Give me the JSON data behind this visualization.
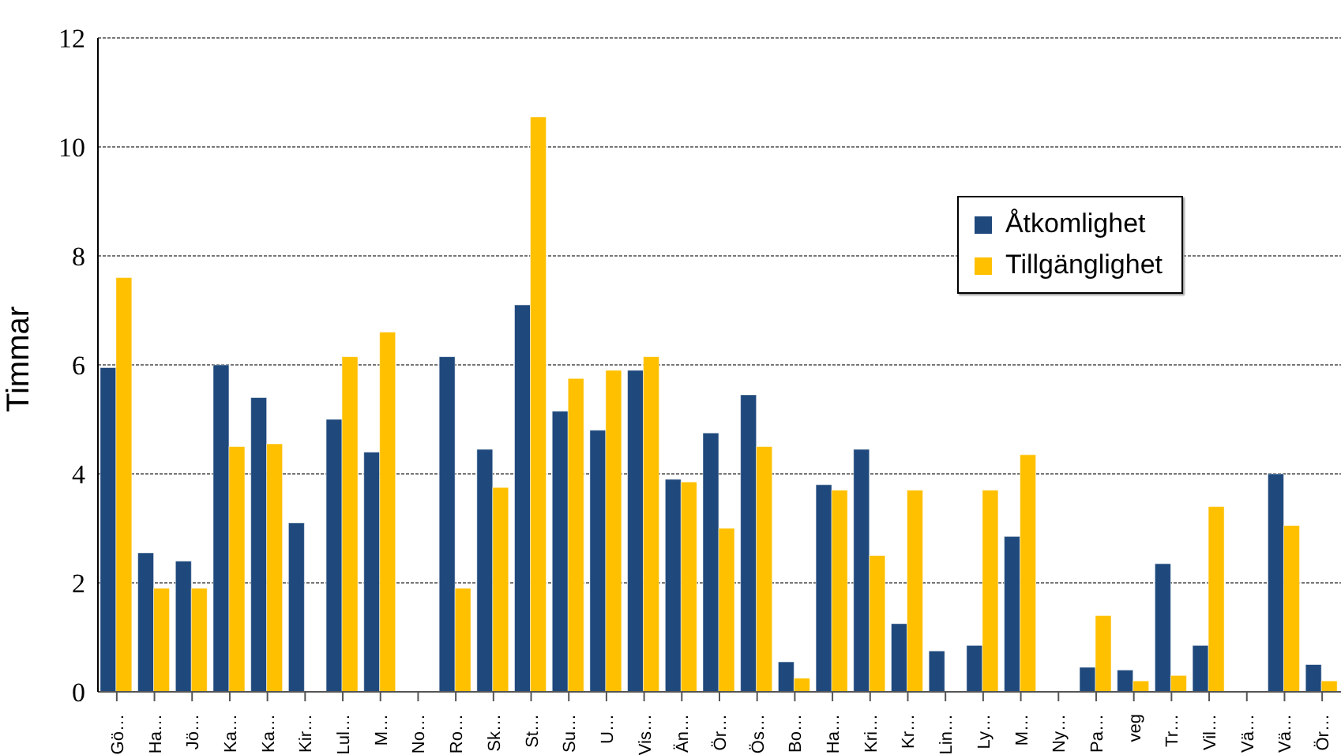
{
  "chart_data": {
    "type": "bar",
    "ylabel": "Timmar",
    "categories": [
      "Gö…",
      "Ha…",
      "Jö…",
      "Ka…",
      "Ka…",
      "Kir…",
      "Lul…",
      "M…",
      "No…",
      "Ro…",
      "Sk…",
      "St…",
      "Su…",
      "U…",
      "Vis…",
      "Än…",
      "Ör…",
      "Ös…",
      "Bo…",
      "Ha…",
      "Kri…",
      "Kr…",
      "Lin…",
      "Ly…",
      "M…",
      "Ny…",
      "Pa…",
      "veg",
      "Tr…",
      "Vil…",
      "Vä…",
      "Vä…",
      "Ör…"
    ],
    "series": [
      {
        "name": "Åtkomlighet",
        "color": "#1f497d",
        "values": [
          5.95,
          2.55,
          2.4,
          6.0,
          5.4,
          3.1,
          5.0,
          4.4,
          null,
          6.15,
          4.45,
          7.1,
          5.15,
          4.8,
          5.9,
          3.9,
          4.75,
          5.45,
          0.55,
          3.8,
          4.45,
          1.25,
          0.75,
          0.85,
          2.85,
          null,
          0.45,
          0.4,
          2.35,
          0.85,
          null,
          4.0,
          0.5
        ]
      },
      {
        "name": "Tillgänglighet",
        "color": "#ffc000",
        "values": [
          7.6,
          1.9,
          1.9,
          4.5,
          4.55,
          null,
          6.15,
          6.6,
          null,
          1.9,
          3.75,
          10.55,
          5.75,
          5.9,
          6.15,
          3.85,
          3.0,
          4.5,
          0.25,
          3.7,
          2.5,
          3.7,
          null,
          3.7,
          4.35,
          null,
          1.4,
          0.2,
          0.3,
          3.4,
          null,
          3.05,
          0.2
        ]
      }
    ],
    "ylim": [
      0,
      12
    ],
    "yticks": [
      0,
      2,
      4,
      6,
      8,
      10,
      12
    ],
    "grid": "y",
    "legend": "top right"
  }
}
